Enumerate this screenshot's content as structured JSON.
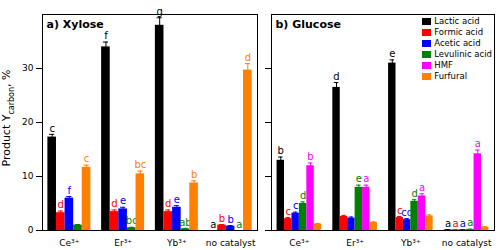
{
  "chart_data": [
    {
      "type": "bar",
      "title": "a) Xylose",
      "ylabel": "Product Y",
      "ylabel_sub": "carbon",
      "ylabel_suffix": ", %",
      "categories": [
        "Ce³⁺",
        "Er³⁺",
        "Yb³⁺",
        "no catalyst"
      ],
      "series": [
        {
          "name": "Lactic acid",
          "color": "#000000",
          "values": [
            17.3,
            34.0,
            38.0,
            0.0
          ],
          "errors": [
            0.5,
            0.9,
            1.4,
            0.0
          ],
          "letters": [
            "c",
            "f",
            "g",
            "a"
          ]
        },
        {
          "name": "Formic acid",
          "color": "#ff0000",
          "values": [
            3.3,
            3.5,
            3.5,
            1.0
          ],
          "errors": [
            0.3,
            0.3,
            0.3,
            0.1
          ],
          "letters": [
            "d",
            "d",
            "d",
            "b"
          ]
        },
        {
          "name": "Acetic acid",
          "color": "#0000ff",
          "values": [
            6.0,
            4.0,
            4.3,
            0.8
          ],
          "errors": [
            0.3,
            0.3,
            0.3,
            0.1
          ],
          "letters": [
            "f",
            "e",
            "e",
            "b"
          ]
        },
        {
          "name": "Levulinic acid",
          "color": "#008000",
          "values": [
            1.0,
            0.5,
            0.3,
            0.0
          ],
          "errors": [
            0.1,
            0.1,
            0.1,
            0.0
          ],
          "letters": [
            null,
            "bc",
            "ab",
            "a"
          ]
        },
        {
          "name": "Furfural",
          "color": "#ff8000",
          "values": [
            11.7,
            10.5,
            8.8,
            29.7
          ],
          "errors": [
            0.4,
            0.5,
            0.4,
            1.2
          ],
          "letters": [
            "c",
            "bc",
            "b",
            "d"
          ]
        }
      ],
      "ylim": [
        0,
        40
      ],
      "yticks": [
        0,
        10,
        20,
        30
      ]
    },
    {
      "type": "bar",
      "title": "b) Glucose",
      "categories": [
        "Ce³⁺",
        "Er³⁺",
        "Yb³⁺",
        "no catalyst"
      ],
      "series": [
        {
          "name": "Lactic acid",
          "color": "#000000",
          "values": [
            13.0,
            26.5,
            31.0,
            0.1
          ],
          "errors": [
            0.6,
            0.9,
            0.6,
            0.05
          ],
          "letters": [
            "b",
            "d",
            "e",
            "a"
          ]
        },
        {
          "name": "Formic acid",
          "color": "#ff0000",
          "values": [
            2.2,
            2.6,
            2.4,
            0.1
          ],
          "errors": [
            0.2,
            0.2,
            0.2,
            0.05
          ],
          "letters": [
            "c",
            null,
            "c",
            "a"
          ]
        },
        {
          "name": "Acetic acid",
          "color": "#0000ff",
          "values": [
            3.2,
            2.3,
            2.0,
            0.1
          ],
          "errors": [
            0.2,
            0.2,
            0.2,
            0.05
          ],
          "letters": [
            "c",
            null,
            "cd",
            "a"
          ]
        },
        {
          "name": "Levulinic acid",
          "color": "#008000",
          "values": [
            5.0,
            8.0,
            5.4,
            0.2
          ],
          "errors": [
            0.3,
            0.4,
            0.3,
            0.05
          ],
          "letters": [
            "d",
            "e",
            "d",
            "a"
          ]
        },
        {
          "name": "HMF",
          "color": "#ff00ff",
          "values": [
            12.0,
            8.0,
            6.4,
            14.2
          ],
          "errors": [
            0.5,
            0.4,
            0.4,
            0.7
          ],
          "letters": [
            "b",
            "a",
            "a",
            "a"
          ]
        },
        {
          "name": "Furfural",
          "color": "#ff8000",
          "values": [
            1.2,
            1.5,
            2.7,
            0.6
          ],
          "errors": [
            0.1,
            0.1,
            0.2,
            0.1
          ],
          "letters": [
            null,
            null,
            null,
            null
          ]
        }
      ],
      "ylim": [
        0,
        40
      ],
      "yticks": [
        0,
        10,
        20,
        30
      ],
      "legend": "top-right",
      "tick_labels": "x"
    }
  ]
}
